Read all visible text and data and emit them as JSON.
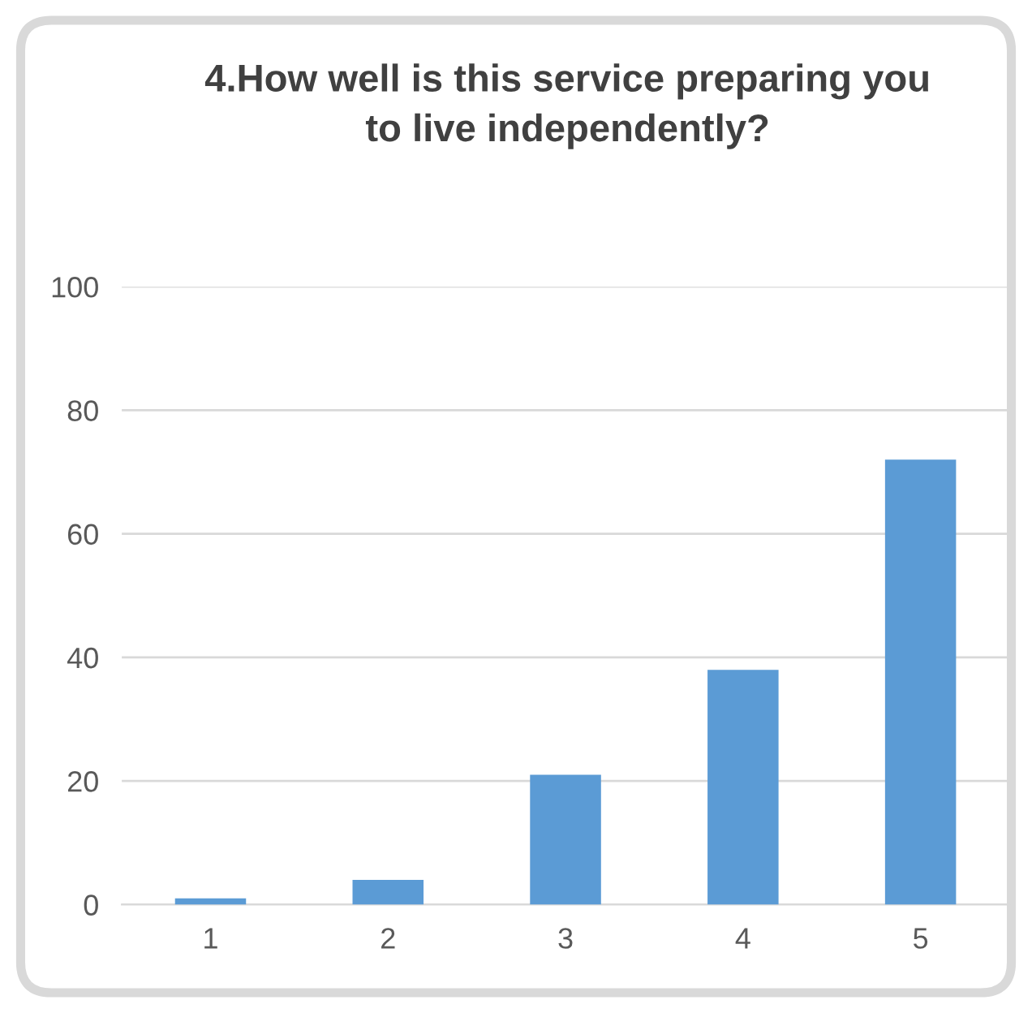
{
  "chart_data": {
    "type": "bar",
    "title": "4.How well is this service preparing you\nto live independently?",
    "categories": [
      "1",
      "2",
      "3",
      "4",
      "5"
    ],
    "values": [
      1,
      4,
      21,
      38,
      72
    ],
    "color": "#5b9bd5",
    "ylim": [
      0,
      100
    ],
    "yticks": [
      0,
      20,
      40,
      60,
      80,
      100
    ],
    "grid": "y"
  }
}
